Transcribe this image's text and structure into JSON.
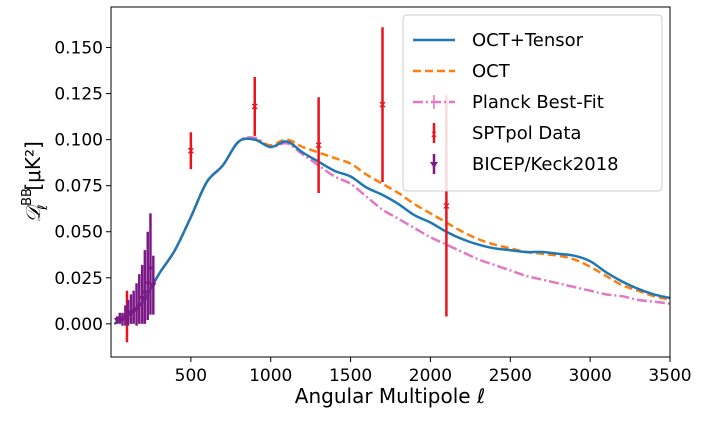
{
  "chart_data": {
    "type": "line",
    "xlabel": "Angular Multipole ℓ",
    "ylabel_main": "𝒟",
    "ylabel_sub": "ℓ",
    "ylabel_sup": "BB",
    "ylabel_unit": "[μK²]",
    "xlim": [
      0,
      3500
    ],
    "ylim": [
      -0.018,
      0.172
    ],
    "xticks": [
      500,
      1000,
      1500,
      2000,
      2500,
      3000,
      3500
    ],
    "xtick_labels": [
      "500",
      "1000",
      "1500",
      "2000",
      "2500",
      "3000",
      "3500"
    ],
    "yticks": [
      0,
      0.025,
      0.05,
      0.075,
      0.1,
      0.125,
      0.15
    ],
    "ytick_labels": [
      "0.000",
      "0.025",
      "0.050",
      "0.075",
      "0.100",
      "0.125",
      "0.150"
    ],
    "legend_position": "top-right",
    "series": [
      {
        "name": "OCT+Tensor",
        "color": "#1f77b4",
        "style": "solid",
        "x": [
          20,
          100,
          200,
          300,
          400,
          500,
          600,
          700,
          800,
          900,
          1000,
          1100,
          1200,
          1300,
          1400,
          1500,
          1600,
          1700,
          1800,
          1900,
          2000,
          2100,
          2200,
          2300,
          2400,
          2500,
          2600,
          2700,
          2800,
          2900,
          3000,
          3100,
          3200,
          3300,
          3400,
          3500
        ],
        "y": [
          0.0,
          0.004,
          0.012,
          0.027,
          0.04,
          0.058,
          0.077,
          0.086,
          0.099,
          0.1,
          0.096,
          0.099,
          0.093,
          0.088,
          0.083,
          0.08,
          0.074,
          0.07,
          0.065,
          0.059,
          0.055,
          0.05,
          0.046,
          0.043,
          0.041,
          0.04,
          0.039,
          0.039,
          0.038,
          0.037,
          0.034,
          0.028,
          0.023,
          0.019,
          0.016,
          0.014
        ]
      },
      {
        "name": "OCT",
        "color": "#ff7f0e",
        "style": "dashed",
        "x": [
          20,
          100,
          200,
          300,
          400,
          500,
          600,
          700,
          800,
          900,
          1000,
          1100,
          1200,
          1300,
          1400,
          1500,
          1600,
          1700,
          1800,
          1900,
          2000,
          2100,
          2200,
          2300,
          2400,
          2500,
          2600,
          2700,
          2800,
          2900,
          3000,
          3100,
          3200,
          3300,
          3400,
          3500
        ],
        "y": [
          0.0,
          0.004,
          0.012,
          0.027,
          0.04,
          0.058,
          0.077,
          0.086,
          0.099,
          0.1,
          0.097,
          0.1,
          0.096,
          0.093,
          0.09,
          0.087,
          0.081,
          0.076,
          0.071,
          0.065,
          0.06,
          0.055,
          0.05,
          0.046,
          0.043,
          0.041,
          0.039,
          0.038,
          0.037,
          0.035,
          0.031,
          0.026,
          0.021,
          0.018,
          0.015,
          0.013
        ]
      },
      {
        "name": "Planck Best-Fit",
        "color": "#e377c2",
        "style": "dashdot",
        "x": [
          20,
          100,
          200,
          300,
          400,
          500,
          600,
          700,
          800,
          900,
          1000,
          1100,
          1200,
          1300,
          1400,
          1500,
          1600,
          1700,
          1800,
          1900,
          2000,
          2100,
          2200,
          2300,
          2400,
          2500,
          2600,
          2700,
          2800,
          2900,
          3000,
          3100,
          3200,
          3300,
          3400,
          3500
        ],
        "y": [
          0.0,
          0.004,
          0.012,
          0.027,
          0.04,
          0.058,
          0.077,
          0.086,
          0.099,
          0.101,
          0.096,
          0.098,
          0.092,
          0.086,
          0.08,
          0.076,
          0.069,
          0.062,
          0.057,
          0.052,
          0.047,
          0.043,
          0.039,
          0.035,
          0.032,
          0.029,
          0.026,
          0.024,
          0.022,
          0.02,
          0.018,
          0.016,
          0.015,
          0.013,
          0.012,
          0.011
        ]
      }
    ],
    "error_series": [
      {
        "name": "SPTpol Data",
        "color": "#e8141b",
        "marker": "x",
        "points": [
          {
            "x": 100,
            "y": 0.004,
            "lo": -0.01,
            "hi": 0.018
          },
          {
            "x": 500,
            "y": 0.094,
            "lo": 0.084,
            "hi": 0.104
          },
          {
            "x": 900,
            "y": 0.118,
            "lo": 0.102,
            "hi": 0.134
          },
          {
            "x": 1300,
            "y": 0.097,
            "lo": 0.071,
            "hi": 0.123
          },
          {
            "x": 1700,
            "y": 0.119,
            "lo": 0.077,
            "hi": 0.161
          },
          {
            "x": 2100,
            "y": 0.064,
            "lo": 0.004,
            "hi": 0.124
          }
        ]
      },
      {
        "name": "BICEP/Keck2018",
        "color": "#7b1a86",
        "marker": "v",
        "points": [
          {
            "x": 37,
            "y": 0.002,
            "lo": 0.0,
            "hi": 0.004
          },
          {
            "x": 55,
            "y": 0.003,
            "lo": 0.0,
            "hi": 0.006
          },
          {
            "x": 72,
            "y": 0.002,
            "lo": -0.001,
            "hi": 0.006
          },
          {
            "x": 90,
            "y": 0.004,
            "lo": -0.001,
            "hi": 0.01
          },
          {
            "x": 107,
            "y": 0.005,
            "lo": -0.001,
            "hi": 0.013
          },
          {
            "x": 125,
            "y": 0.006,
            "lo": 0.0,
            "hi": 0.016
          },
          {
            "x": 142,
            "y": 0.007,
            "lo": 0.0,
            "hi": 0.018
          },
          {
            "x": 160,
            "y": 0.008,
            "lo": -0.001,
            "hi": 0.022
          },
          {
            "x": 177,
            "y": 0.01,
            "lo": 0.0,
            "hi": 0.027
          },
          {
            "x": 195,
            "y": 0.014,
            "lo": 0.0,
            "hi": 0.032
          },
          {
            "x": 212,
            "y": 0.017,
            "lo": 0.0,
            "hi": 0.04
          },
          {
            "x": 230,
            "y": 0.022,
            "lo": 0.002,
            "hi": 0.05
          },
          {
            "x": 247,
            "y": 0.03,
            "lo": 0.005,
            "hi": 0.06
          },
          {
            "x": 265,
            "y": 0.021,
            "lo": 0.005,
            "hi": 0.037
          }
        ]
      }
    ]
  }
}
